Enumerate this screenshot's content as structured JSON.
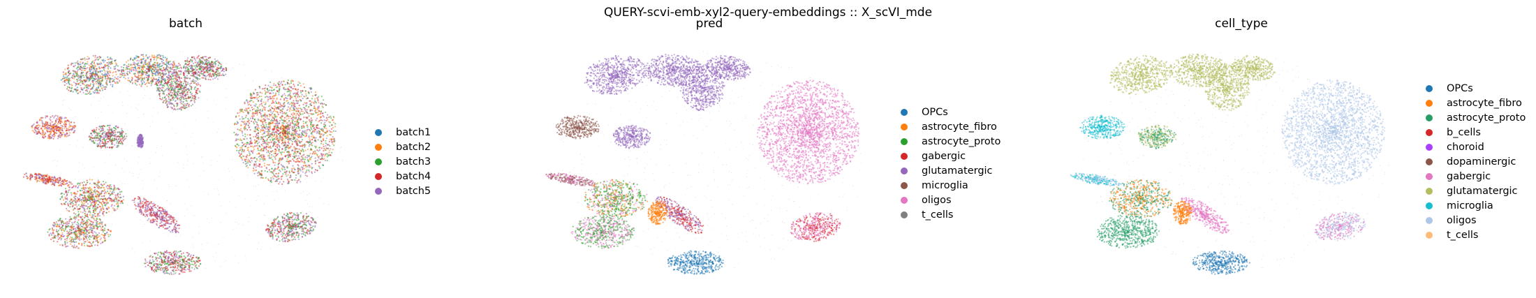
{
  "suptitle": "QUERY-scvi-emb-xyl2-query-embeddings :: X_scVI_mde",
  "chart_data": [
    {
      "type": "scatter",
      "title": "batch",
      "xlabel": "",
      "ylabel": "",
      "grid": false,
      "legend_position": "right",
      "categories": [
        {
          "name": "batch1",
          "color": "#1f77b4"
        },
        {
          "name": "batch2",
          "color": "#ff7f0e"
        },
        {
          "name": "batch3",
          "color": "#2ca02c"
        },
        {
          "name": "batch4",
          "color": "#d62728"
        },
        {
          "name": "batch5",
          "color": "#9467bd"
        }
      ],
      "clusters": [
        {
          "x": 0.2,
          "y": 0.14,
          "rx": 0.1,
          "ry": 0.08,
          "rot": -10,
          "category": "batch4",
          "mix": [
            "batch4",
            "batch5",
            "batch2",
            "batch3",
            "batch1"
          ]
        },
        {
          "x": 0.38,
          "y": 0.12,
          "rx": 0.09,
          "ry": 0.07,
          "rot": 0,
          "category": "batch4",
          "mix": [
            "batch4",
            "batch5",
            "batch3",
            "batch2",
            "batch1"
          ]
        },
        {
          "x": 0.47,
          "y": 0.19,
          "rx": 0.07,
          "ry": 0.1,
          "rot": 0,
          "category": "batch4",
          "mix": [
            "batch4",
            "batch5",
            "batch3"
          ]
        },
        {
          "x": 0.55,
          "y": 0.11,
          "rx": 0.07,
          "ry": 0.05,
          "rot": 10,
          "category": "batch4",
          "mix": [
            "batch4",
            "batch5",
            "batch3"
          ]
        },
        {
          "x": 0.08,
          "y": 0.36,
          "rx": 0.07,
          "ry": 0.05,
          "rot": 0,
          "category": "batch4",
          "mix": [
            "batch4",
            "batch5",
            "batch2"
          ]
        },
        {
          "x": 0.25,
          "y": 0.4,
          "rx": 0.06,
          "ry": 0.05,
          "rot": 0,
          "category": "batch4",
          "mix": [
            "batch4",
            "batch5",
            "batch3"
          ]
        },
        {
          "x": 0.06,
          "y": 0.58,
          "rx": 0.08,
          "ry": 0.02,
          "rot": 10,
          "category": "batch4",
          "mix": [
            "batch4",
            "batch2",
            "batch5"
          ]
        },
        {
          "x": 0.2,
          "y": 0.66,
          "rx": 0.1,
          "ry": 0.08,
          "rot": 0,
          "category": "batch4",
          "mix": [
            "batch4",
            "batch5",
            "batch3",
            "batch2"
          ]
        },
        {
          "x": 0.16,
          "y": 0.8,
          "rx": 0.1,
          "ry": 0.07,
          "rot": 0,
          "category": "batch4",
          "mix": [
            "batch4",
            "batch5",
            "batch3",
            "batch2"
          ]
        },
        {
          "x": 0.4,
          "y": 0.73,
          "rx": 0.09,
          "ry": 0.04,
          "rot": 35,
          "category": "batch4",
          "mix": [
            "batch4",
            "batch5"
          ]
        },
        {
          "x": 0.45,
          "y": 0.93,
          "rx": 0.09,
          "ry": 0.05,
          "rot": 0,
          "category": "batch4",
          "mix": [
            "batch4",
            "batch5",
            "batch3"
          ]
        },
        {
          "x": 0.8,
          "y": 0.38,
          "rx": 0.16,
          "ry": 0.22,
          "rot": 0,
          "category": "batch4",
          "mix": [
            "batch4",
            "batch5",
            "batch3",
            "batch2"
          ]
        },
        {
          "x": 0.82,
          "y": 0.78,
          "rx": 0.08,
          "ry": 0.06,
          "rot": -10,
          "category": "batch4",
          "mix": [
            "batch4",
            "batch5",
            "batch3"
          ]
        },
        {
          "x": 0.35,
          "y": 0.42,
          "rx": 0.01,
          "ry": 0.03,
          "rot": 0,
          "category": "batch5",
          "mix": [
            "batch5"
          ]
        }
      ]
    },
    {
      "type": "scatter",
      "title": "pred",
      "xlabel": "",
      "ylabel": "",
      "grid": false,
      "legend_position": "right",
      "categories": [
        {
          "name": "OPCs",
          "color": "#1f77b4"
        },
        {
          "name": "astrocyte_fibro",
          "color": "#ff7f0e"
        },
        {
          "name": "astrocyte_proto",
          "color": "#2ca02c"
        },
        {
          "name": "gabergic",
          "color": "#d62728"
        },
        {
          "name": "glutamatergic",
          "color": "#9467bd"
        },
        {
          "name": "microglia",
          "color": "#8c564b"
        },
        {
          "name": "oligos",
          "color": "#e377c2"
        },
        {
          "name": "t_cells",
          "color": "#7f7f7f"
        }
      ],
      "clusters": [
        {
          "x": 0.2,
          "y": 0.14,
          "rx": 0.1,
          "ry": 0.08,
          "rot": -10,
          "category": "glutamatergic",
          "mix": [
            "glutamatergic"
          ]
        },
        {
          "x": 0.38,
          "y": 0.12,
          "rx": 0.09,
          "ry": 0.07,
          "rot": 0,
          "category": "glutamatergic",
          "mix": [
            "glutamatergic"
          ]
        },
        {
          "x": 0.47,
          "y": 0.19,
          "rx": 0.07,
          "ry": 0.1,
          "rot": 0,
          "category": "glutamatergic",
          "mix": [
            "glutamatergic"
          ]
        },
        {
          "x": 0.55,
          "y": 0.11,
          "rx": 0.07,
          "ry": 0.05,
          "rot": 10,
          "category": "glutamatergic",
          "mix": [
            "glutamatergic"
          ]
        },
        {
          "x": 0.08,
          "y": 0.36,
          "rx": 0.07,
          "ry": 0.05,
          "rot": 0,
          "category": "microglia",
          "mix": [
            "microglia"
          ]
        },
        {
          "x": 0.25,
          "y": 0.4,
          "rx": 0.06,
          "ry": 0.05,
          "rot": 0,
          "category": "glutamatergic",
          "mix": [
            "glutamatergic"
          ]
        },
        {
          "x": 0.06,
          "y": 0.58,
          "rx": 0.08,
          "ry": 0.02,
          "rot": 10,
          "category": "oligos",
          "mix": [
            "oligos",
            "microglia"
          ]
        },
        {
          "x": 0.2,
          "y": 0.66,
          "rx": 0.1,
          "ry": 0.08,
          "rot": 0,
          "category": "astrocyte_proto",
          "mix": [
            "astrocyte_proto",
            "astrocyte_fibro",
            "oligos",
            "astrocyte_proto"
          ]
        },
        {
          "x": 0.16,
          "y": 0.8,
          "rx": 0.1,
          "ry": 0.07,
          "rot": 0,
          "category": "astrocyte_proto",
          "mix": [
            "astrocyte_proto",
            "oligos"
          ]
        },
        {
          "x": 0.4,
          "y": 0.73,
          "rx": 0.09,
          "ry": 0.04,
          "rot": 35,
          "category": "gabergic",
          "mix": [
            "gabergic",
            "glutamatergic"
          ]
        },
        {
          "x": 0.45,
          "y": 0.93,
          "rx": 0.09,
          "ry": 0.05,
          "rot": 0,
          "category": "OPCs",
          "mix": [
            "OPCs"
          ]
        },
        {
          "x": 0.8,
          "y": 0.38,
          "rx": 0.16,
          "ry": 0.22,
          "rot": 0,
          "category": "oligos",
          "mix": [
            "oligos"
          ]
        },
        {
          "x": 0.82,
          "y": 0.78,
          "rx": 0.08,
          "ry": 0.06,
          "rot": -10,
          "category": "gabergic",
          "mix": [
            "gabergic",
            "oligos"
          ]
        },
        {
          "x": 0.33,
          "y": 0.72,
          "rx": 0.03,
          "ry": 0.05,
          "rot": 0,
          "category": "astrocyte_fibro",
          "mix": [
            "astrocyte_fibro"
          ]
        }
      ]
    },
    {
      "type": "scatter",
      "title": "cell_type",
      "xlabel": "",
      "ylabel": "",
      "grid": false,
      "legend_position": "right",
      "categories": [
        {
          "name": "OPCs",
          "color": "#1f77b4"
        },
        {
          "name": "astrocyte_fibro",
          "color": "#ff7f0e"
        },
        {
          "name": "astrocyte_proto",
          "color": "#279e68"
        },
        {
          "name": "b_cells",
          "color": "#d62728"
        },
        {
          "name": "choroid",
          "color": "#aa40fc"
        },
        {
          "name": "dopaminergic",
          "color": "#8c564b"
        },
        {
          "name": "gabergic",
          "color": "#e377c2"
        },
        {
          "name": "glutamatergic",
          "color": "#b5bd61"
        },
        {
          "name": "microglia",
          "color": "#17becf"
        },
        {
          "name": "oligos",
          "color": "#aec7e8"
        },
        {
          "name": "t_cells",
          "color": "#ffbb78"
        }
      ],
      "clusters": [
        {
          "x": 0.2,
          "y": 0.14,
          "rx": 0.1,
          "ry": 0.08,
          "rot": -10,
          "category": "glutamatergic",
          "mix": [
            "glutamatergic"
          ]
        },
        {
          "x": 0.38,
          "y": 0.12,
          "rx": 0.09,
          "ry": 0.07,
          "rot": 0,
          "category": "glutamatergic",
          "mix": [
            "glutamatergic"
          ]
        },
        {
          "x": 0.47,
          "y": 0.19,
          "rx": 0.07,
          "ry": 0.1,
          "rot": 0,
          "category": "glutamatergic",
          "mix": [
            "glutamatergic"
          ]
        },
        {
          "x": 0.55,
          "y": 0.11,
          "rx": 0.07,
          "ry": 0.05,
          "rot": 10,
          "category": "glutamatergic",
          "mix": [
            "glutamatergic"
          ]
        },
        {
          "x": 0.08,
          "y": 0.36,
          "rx": 0.07,
          "ry": 0.05,
          "rot": 0,
          "category": "microglia",
          "mix": [
            "microglia"
          ]
        },
        {
          "x": 0.25,
          "y": 0.4,
          "rx": 0.06,
          "ry": 0.05,
          "rot": 0,
          "category": "glutamatergic",
          "mix": [
            "glutamatergic",
            "astrocyte_proto"
          ]
        },
        {
          "x": 0.06,
          "y": 0.58,
          "rx": 0.08,
          "ry": 0.02,
          "rot": 10,
          "category": "microglia",
          "mix": [
            "microglia",
            "oligos"
          ]
        },
        {
          "x": 0.2,
          "y": 0.66,
          "rx": 0.1,
          "ry": 0.08,
          "rot": 0,
          "category": "astrocyte_proto",
          "mix": [
            "astrocyte_proto",
            "astrocyte_fibro"
          ]
        },
        {
          "x": 0.16,
          "y": 0.8,
          "rx": 0.1,
          "ry": 0.07,
          "rot": 0,
          "category": "astrocyte_proto",
          "mix": [
            "astrocyte_proto"
          ]
        },
        {
          "x": 0.4,
          "y": 0.73,
          "rx": 0.09,
          "ry": 0.04,
          "rot": 35,
          "category": "gabergic",
          "mix": [
            "gabergic"
          ]
        },
        {
          "x": 0.45,
          "y": 0.93,
          "rx": 0.09,
          "ry": 0.05,
          "rot": 0,
          "category": "OPCs",
          "mix": [
            "OPCs"
          ]
        },
        {
          "x": 0.8,
          "y": 0.38,
          "rx": 0.16,
          "ry": 0.22,
          "rot": 0,
          "category": "oligos",
          "mix": [
            "oligos"
          ]
        },
        {
          "x": 0.82,
          "y": 0.78,
          "rx": 0.08,
          "ry": 0.06,
          "rot": -10,
          "category": "gabergic",
          "mix": [
            "gabergic",
            "oligos"
          ]
        },
        {
          "x": 0.33,
          "y": 0.72,
          "rx": 0.03,
          "ry": 0.05,
          "rot": 0,
          "category": "astrocyte_fibro",
          "mix": [
            "astrocyte_fibro"
          ]
        }
      ]
    }
  ]
}
